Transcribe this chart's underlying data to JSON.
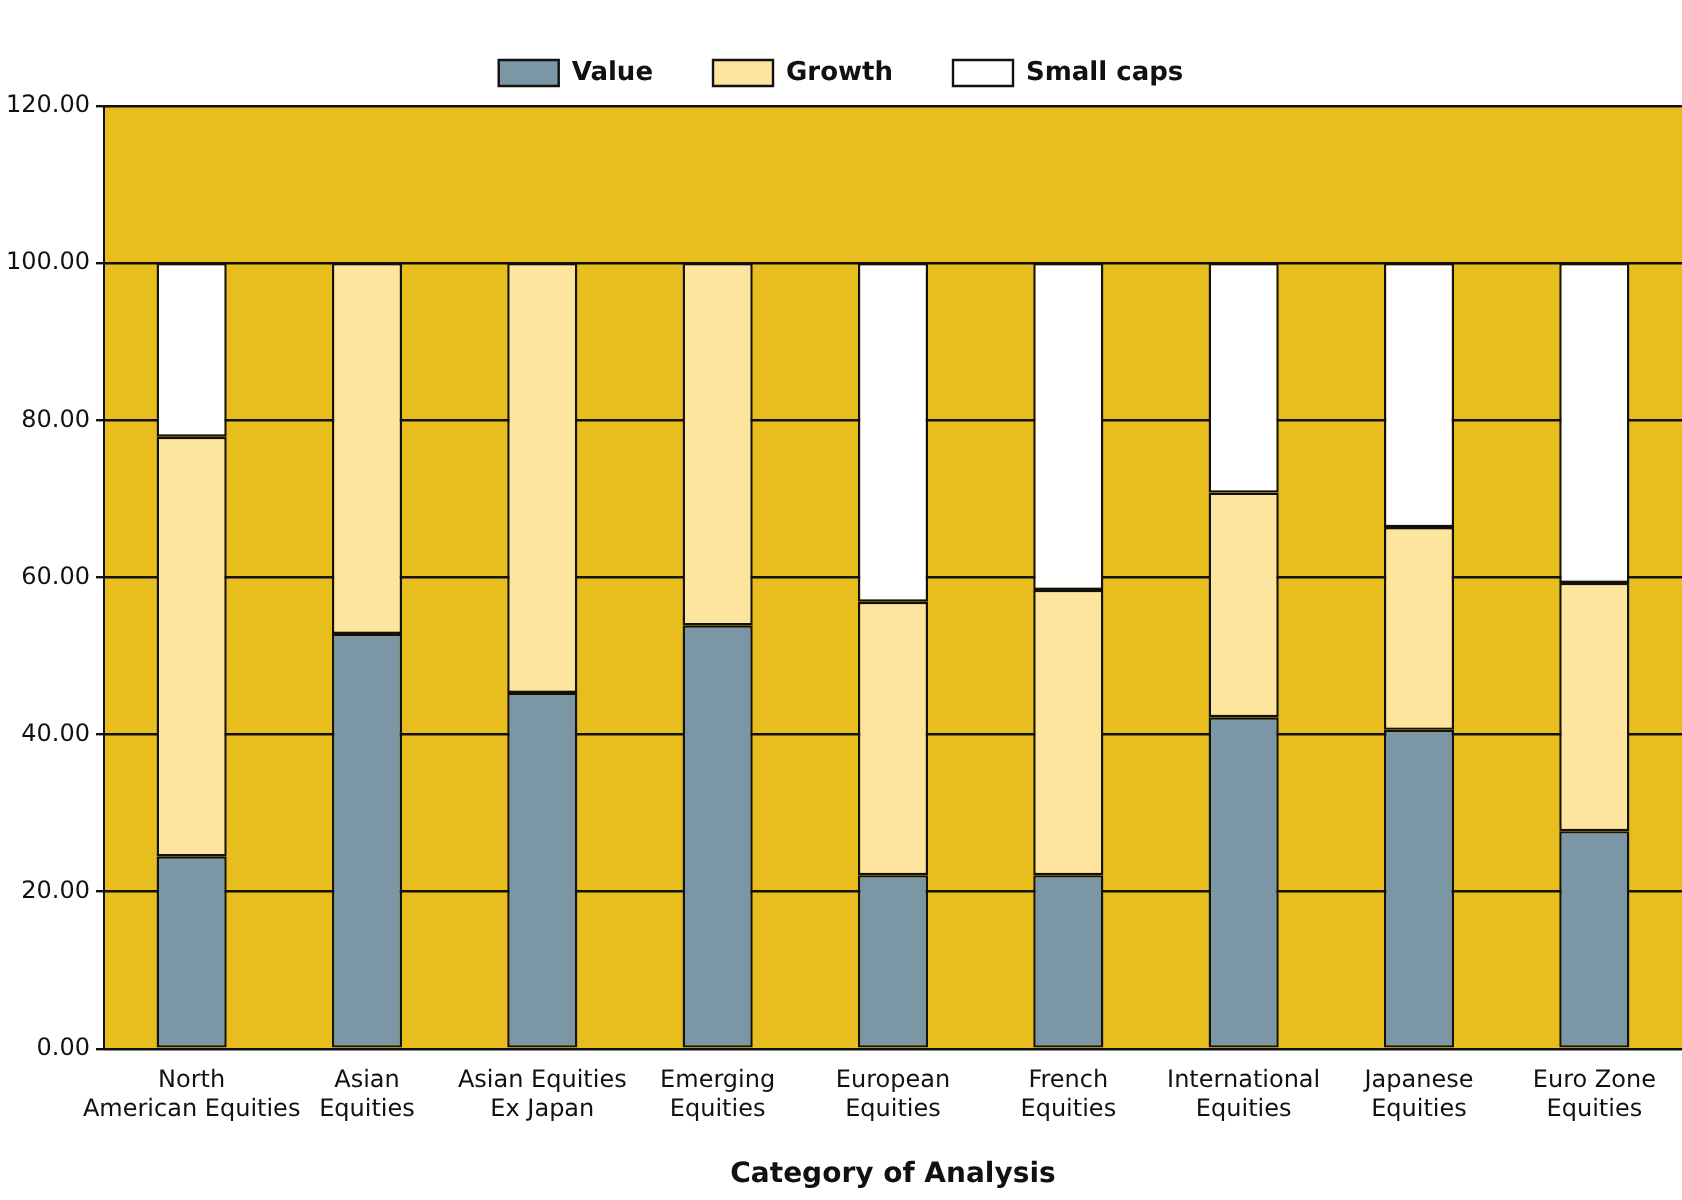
{
  "chart_data": {
    "type": "bar",
    "stacked": true,
    "xlabel": "Category of Analysis",
    "categories": [
      "North\nAmerican Equities",
      "Asian\nEquities",
      "Asian Equities\nEx Japan",
      "Emerging\nEquities",
      "European\nEquities",
      "French\nEquities",
      "International\nEquities",
      "Japanese\nEquities",
      "Euro Zone\nEquities"
    ],
    "series": [
      {
        "name": "Value",
        "color": "#7b97a5",
        "values": [
          24.5,
          52.8,
          45.3,
          53.9,
          22.1,
          22.1,
          42.2,
          40.6,
          27.7
        ]
      },
      {
        "name": "Growth",
        "color": "#fee59f",
        "values": [
          53.4,
          47.2,
          54.7,
          46.1,
          34.8,
          36.3,
          28.6,
          25.8,
          31.6
        ]
      },
      {
        "name": "Small caps",
        "color": "#ffffff",
        "values": [
          22.1,
          0,
          0,
          0,
          43.1,
          41.6,
          29.2,
          33.6,
          40.7
        ]
      }
    ],
    "ylim": [
      0,
      120
    ],
    "yticks": [
      {
        "value": 0,
        "label": "0.00"
      },
      {
        "value": 20,
        "label": "20.00"
      },
      {
        "value": 40,
        "label": "40.00"
      },
      {
        "value": 60,
        "label": "60.00"
      },
      {
        "value": 80,
        "label": "80.00"
      },
      {
        "value": 100,
        "label": "100.00"
      },
      {
        "value": 120,
        "label": "120.00"
      }
    ],
    "grid": "y",
    "legend": "top"
  }
}
